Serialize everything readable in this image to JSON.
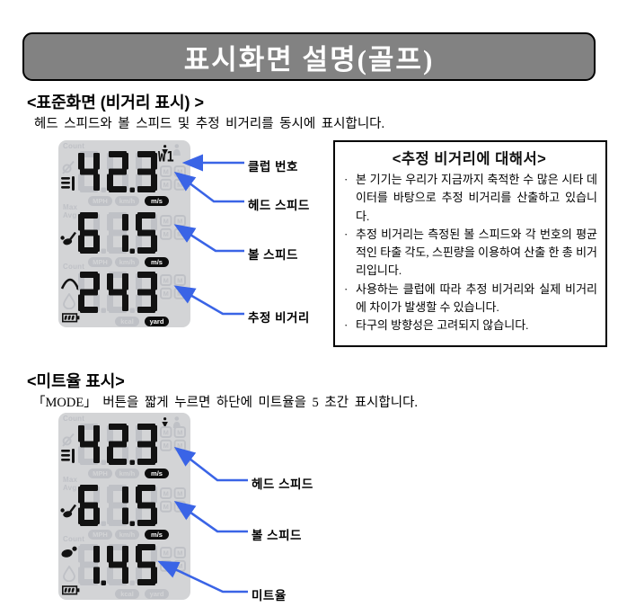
{
  "banner": {
    "title": "표시화면 설명(골프)"
  },
  "colors": {
    "banner_bg": "#828282",
    "arrow": "#3a64e6",
    "lcd_bg": "#d3d4d6",
    "lcd_ghost": "#bfc1c6",
    "lcd_active": "#121212"
  },
  "sections": [
    {
      "heading": "<표준화면 (비거리 표시) >",
      "description": "헤드 스피드와 볼 스피드 및 추정 비거리를 동시에 표시합니다.",
      "callouts": [
        "클럽 번호",
        "헤드 스피드",
        "볼 스피드",
        "추정 비거리"
      ],
      "display": {
        "rows": [
          {
            "ghost_labels": [
              "Count"
            ],
            "ghost_icon": "swing-count-icon",
            "icon": "golf-tee-icon",
            "value": "42.3",
            "indicator": "W1",
            "badges": [
              {
                "label": "MPH",
                "active": false
              },
              {
                "label": "km/h",
                "active": false
              },
              {
                "label": "m/s",
                "active": true
              }
            ]
          },
          {
            "ghost_labels": [
              "Max",
              "Avg"
            ],
            "ghost_icon": null,
            "icon": "golf-club-icon",
            "value": "61.5",
            "indicator": null,
            "badges": [
              {
                "label": "MPH",
                "active": false
              },
              {
                "label": "km/h",
                "active": false
              },
              {
                "label": "m/s",
                "active": true
              }
            ]
          },
          {
            "ghost_labels": [
              "Count"
            ],
            "ghost_icon": "flame-icon",
            "icon": "trajectory-icon",
            "value": "243",
            "indicator": null,
            "badges": [
              {
                "label": "kcal",
                "active": false
              },
              {
                "label": "yard",
                "active": true
              }
            ]
          }
        ]
      }
    },
    {
      "heading": "<미트율 표시>",
      "description": "「MODE」 버튼을 짧게 누르면 하단에 미트율을 5 초간 표시합니다.",
      "callouts": [
        "헤드 스피드",
        "볼 스피드",
        "미트율"
      ],
      "display": {
        "rows": [
          {
            "ghost_labels": [
              "Count"
            ],
            "ghost_icon": "swing-count-icon",
            "icon": "golf-tee-icon",
            "value": "42.3",
            "indicator": null,
            "badges": [
              {
                "label": "MPH",
                "active": false
              },
              {
                "label": "km/h",
                "active": false
              },
              {
                "label": "m/s",
                "active": true
              }
            ]
          },
          {
            "ghost_labels": [
              "Max",
              "Avg"
            ],
            "ghost_icon": null,
            "icon": "golf-club-icon",
            "value": "61.5",
            "indicator": null,
            "badges": [
              {
                "label": "MPH",
                "active": false
              },
              {
                "label": "km/h",
                "active": false
              },
              {
                "label": "m/s",
                "active": true
              }
            ]
          },
          {
            "ghost_labels": [
              "Count"
            ],
            "ghost_icon": "flame-icon",
            "icon": "club-head-icon",
            "value": "1.45",
            "indicator": null,
            "badges": [
              {
                "label": "kcal",
                "active": false
              },
              {
                "label": "yard",
                "active": false
              }
            ]
          }
        ]
      }
    }
  ],
  "info_box": {
    "title": "<추정 비거리에 대해서>",
    "bullet_char": "·",
    "bullets": [
      "본 기기는 우리가 지금까지 축적한 수 많은 시타 데이터를 바탕으로 추정 비거리를 산출하고 있습니다.",
      "추정 비거리는 측정된 볼 스피드와 각 번호의 평균적인 타출 각도, 스핀량을 이용하여 산출 한 총 비거리입니다.",
      "사용하는 클럽에 따라 추정 비거리와 실제 비거리에 차이가 발생할 수 있습니다.",
      "타구의 방향성은 고려되지 않습니다."
    ]
  }
}
